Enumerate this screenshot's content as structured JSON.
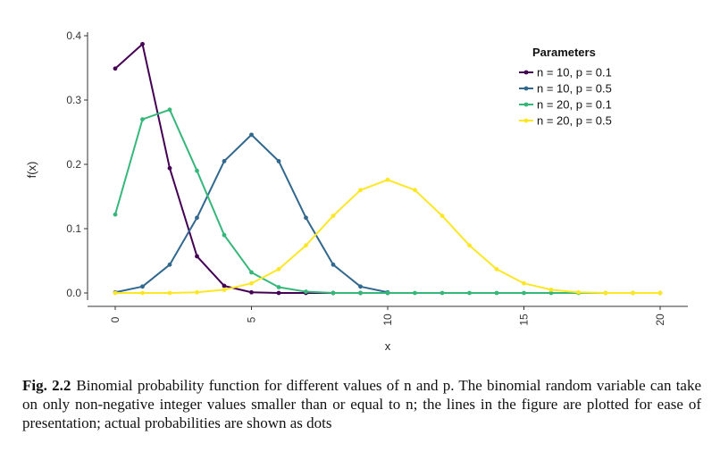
{
  "chart_data": {
    "type": "line",
    "title": "",
    "xlabel": "x",
    "ylabel": "f(x)",
    "xlim": [
      0,
      20
    ],
    "ylim": [
      0,
      0.4
    ],
    "x_ticks": [
      0,
      5,
      10,
      15,
      20
    ],
    "y_ticks": [
      0.0,
      0.1,
      0.2,
      0.3,
      0.4
    ],
    "x_tick_labels": [
      "0",
      "5",
      "10",
      "15",
      "20"
    ],
    "y_tick_labels": [
      "0.0",
      "0.1",
      "0.2",
      "0.3",
      "0.4"
    ],
    "grid": false,
    "markers": true,
    "legend": {
      "title": "Parameters",
      "position": "top-right"
    },
    "series": [
      {
        "name": "n = 10,  p = 0.1",
        "color": "#440154",
        "x": [
          0,
          1,
          2,
          3,
          4,
          5,
          6,
          7,
          8,
          9,
          10
        ],
        "y": [
          0.349,
          0.387,
          0.194,
          0.057,
          0.011,
          0.001,
          0.0,
          0.0,
          0.0,
          0.0,
          0.0
        ]
      },
      {
        "name": "n = 10,  p = 0.5",
        "color": "#31688e",
        "x": [
          0,
          1,
          2,
          3,
          4,
          5,
          6,
          7,
          8,
          9,
          10
        ],
        "y": [
          0.001,
          0.01,
          0.044,
          0.117,
          0.205,
          0.246,
          0.205,
          0.117,
          0.044,
          0.01,
          0.001
        ]
      },
      {
        "name": "n = 20,  p = 0.1",
        "color": "#35b779",
        "x": [
          0,
          1,
          2,
          3,
          4,
          5,
          6,
          7,
          8,
          9,
          10,
          11,
          12,
          13,
          14,
          15,
          16,
          17,
          18,
          19,
          20
        ],
        "y": [
          0.122,
          0.27,
          0.285,
          0.19,
          0.09,
          0.032,
          0.009,
          0.002,
          0.0,
          0.0,
          0.0,
          0.0,
          0.0,
          0.0,
          0.0,
          0.0,
          0.0,
          0.0,
          0.0,
          0.0,
          0.0
        ]
      },
      {
        "name": "n = 20,  p = 0.5",
        "color": "#fde725",
        "x": [
          0,
          1,
          2,
          3,
          4,
          5,
          6,
          7,
          8,
          9,
          10,
          11,
          12,
          13,
          14,
          15,
          16,
          17,
          18,
          19,
          20
        ],
        "y": [
          0.0,
          0.0,
          0.0,
          0.001,
          0.005,
          0.015,
          0.037,
          0.074,
          0.12,
          0.16,
          0.176,
          0.16,
          0.12,
          0.074,
          0.037,
          0.015,
          0.005,
          0.001,
          0.0,
          0.0,
          0.0
        ]
      }
    ]
  },
  "caption": {
    "label": "Fig. 2.2",
    "text": "Binomial probability function for different values of n and p. The binomial random variable can take on only non-negative integer values smaller than or equal to n; the lines in the figure are plotted for ease of presentation; actual probabilities are shown as dots"
  }
}
